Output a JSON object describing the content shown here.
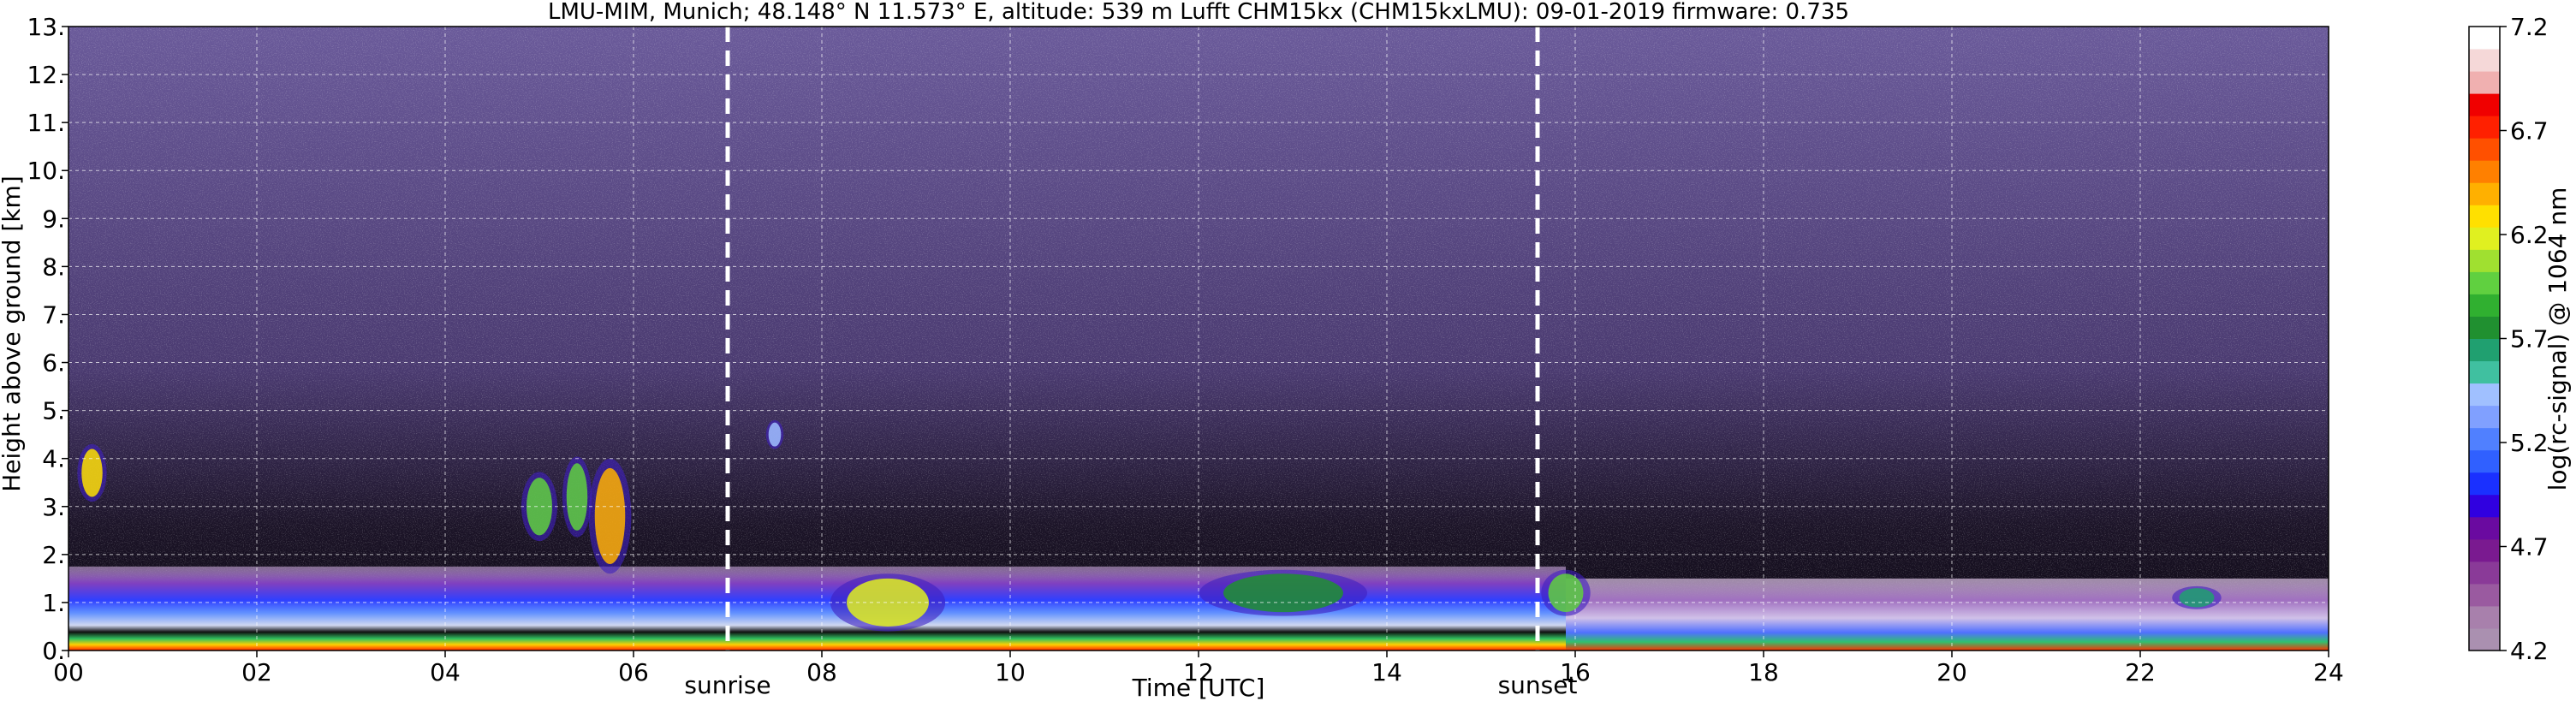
{
  "chart_data": {
    "type": "heatmap",
    "title": "LMU-MIM, Munich; 48.148° N 11.573° E, altitude: 539 m    Lufft CHM15kx (CHM15kxLMU): 09-01-2019    firmware: 0.735",
    "xlabel": "Time [UTC]",
    "ylabel": "Height above ground [km]",
    "xlim": [
      0,
      24
    ],
    "ylim": [
      0,
      13
    ],
    "x_ticks": [
      "00",
      "02",
      "04",
      "06",
      "08",
      "10",
      "12",
      "14",
      "16",
      "18",
      "20",
      "22",
      "24"
    ],
    "y_ticks": [
      "0.",
      "1.",
      "2.",
      "3.",
      "4.",
      "5.",
      "6.",
      "7.",
      "8.",
      "9.",
      "10.",
      "11.",
      "12.",
      "13."
    ],
    "grid": true,
    "markers": [
      {
        "label": "sunrise",
        "x": 7.0
      },
      {
        "label": "sunset",
        "x": 15.6
      }
    ],
    "colorbar": {
      "label": "log(rc-signal) @ 1064 nm",
      "range": [
        4.2,
        7.2
      ],
      "ticks": [
        "4.2",
        "4.7",
        "5.2",
        "5.7",
        "6.2",
        "6.7",
        "7.2"
      ],
      "colors": [
        "#aa90b0",
        "#a880ac",
        "#9a5aa0",
        "#8a3a98",
        "#7a1a90",
        "#6a0aa0",
        "#3000e0",
        "#1a30ff",
        "#3060ff",
        "#5080ff",
        "#80a0ff",
        "#a0c0ff",
        "#40c0a0",
        "#20a070",
        "#209030",
        "#30b030",
        "#60d040",
        "#a0e030",
        "#e0f020",
        "#ffe000",
        "#ffb000",
        "#ff8000",
        "#ff5000",
        "#ff2000",
        "#f00000",
        "#f0b0b0",
        "#f5d8d8",
        "#ffffff"
      ]
    },
    "background_layers": [
      {
        "name": "noise",
        "y_range": [
          2.0,
          13.0
        ],
        "level": 4.5
      },
      {
        "name": "boundary-layer",
        "x_range": [
          0,
          24
        ],
        "y_range": [
          0.0,
          1.7
        ],
        "level": 5.3
      }
    ],
    "features": [
      {
        "kind": "cloud",
        "x": 0.25,
        "y": 3.7,
        "w": 0.15,
        "h": 1.0,
        "level": 6.3
      },
      {
        "kind": "cloud",
        "x": 5.0,
        "y": 3.0,
        "w": 0.2,
        "h": 1.2,
        "level": 6.0
      },
      {
        "kind": "cloud",
        "x": 5.4,
        "y": 3.2,
        "w": 0.15,
        "h": 1.4,
        "level": 6.0
      },
      {
        "kind": "cloud",
        "x": 5.75,
        "y": 2.8,
        "w": 0.25,
        "h": 2.0,
        "level": 6.4
      },
      {
        "kind": "cloud",
        "x": 7.5,
        "y": 4.5,
        "w": 0.06,
        "h": 0.5,
        "level": 5.4
      },
      {
        "kind": "cloud",
        "x": 8.7,
        "y": 1.0,
        "w": 0.8,
        "h": 1.0,
        "level": 6.2
      },
      {
        "kind": "cloud",
        "x": 12.9,
        "y": 1.2,
        "w": 1.2,
        "h": 0.8,
        "level": 5.8
      },
      {
        "kind": "cloud",
        "x": 15.9,
        "y": 1.2,
        "w": 0.3,
        "h": 0.8,
        "level": 6.0
      },
      {
        "kind": "aerosol",
        "x": 22.6,
        "y": 1.1,
        "w": 0.3,
        "h": 0.4,
        "level": 5.6
      }
    ]
  }
}
